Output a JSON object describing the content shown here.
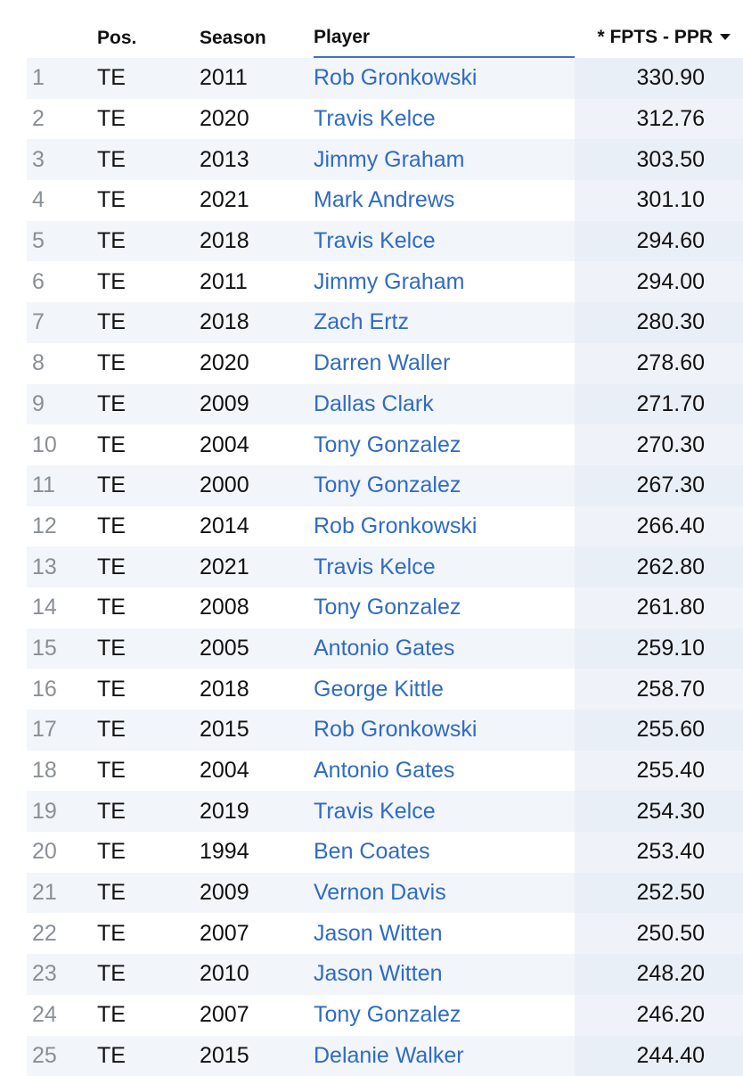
{
  "headers": {
    "rank": "",
    "pos": "Pos.",
    "season": "Season",
    "player": "Player",
    "fpts": "* FPTS - PPR",
    "sort_icon": "caret-down-icon"
  },
  "rows": [
    {
      "rank": "1",
      "pos": "TE",
      "season": "2011",
      "player": "Rob Gronkowski",
      "fpts": "330.90"
    },
    {
      "rank": "2",
      "pos": "TE",
      "season": "2020",
      "player": "Travis Kelce",
      "fpts": "312.76"
    },
    {
      "rank": "3",
      "pos": "TE",
      "season": "2013",
      "player": "Jimmy Graham",
      "fpts": "303.50"
    },
    {
      "rank": "4",
      "pos": "TE",
      "season": "2021",
      "player": "Mark Andrews",
      "fpts": "301.10"
    },
    {
      "rank": "5",
      "pos": "TE",
      "season": "2018",
      "player": "Travis Kelce",
      "fpts": "294.60"
    },
    {
      "rank": "6",
      "pos": "TE",
      "season": "2011",
      "player": "Jimmy Graham",
      "fpts": "294.00"
    },
    {
      "rank": "7",
      "pos": "TE",
      "season": "2018",
      "player": "Zach Ertz",
      "fpts": "280.30"
    },
    {
      "rank": "8",
      "pos": "TE",
      "season": "2020",
      "player": "Darren Waller",
      "fpts": "278.60"
    },
    {
      "rank": "9",
      "pos": "TE",
      "season": "2009",
      "player": "Dallas Clark",
      "fpts": "271.70"
    },
    {
      "rank": "10",
      "pos": "TE",
      "season": "2004",
      "player": "Tony Gonzalez",
      "fpts": "270.30"
    },
    {
      "rank": "11",
      "pos": "TE",
      "season": "2000",
      "player": "Tony Gonzalez",
      "fpts": "267.30"
    },
    {
      "rank": "12",
      "pos": "TE",
      "season": "2014",
      "player": "Rob Gronkowski",
      "fpts": "266.40"
    },
    {
      "rank": "13",
      "pos": "TE",
      "season": "2021",
      "player": "Travis Kelce",
      "fpts": "262.80"
    },
    {
      "rank": "14",
      "pos": "TE",
      "season": "2008",
      "player": "Tony Gonzalez",
      "fpts": "261.80"
    },
    {
      "rank": "15",
      "pos": "TE",
      "season": "2005",
      "player": "Antonio Gates",
      "fpts": "259.10"
    },
    {
      "rank": "16",
      "pos": "TE",
      "season": "2018",
      "player": "George Kittle",
      "fpts": "258.70"
    },
    {
      "rank": "17",
      "pos": "TE",
      "season": "2015",
      "player": "Rob Gronkowski",
      "fpts": "255.60"
    },
    {
      "rank": "18",
      "pos": "TE",
      "season": "2004",
      "player": "Antonio Gates",
      "fpts": "255.40"
    },
    {
      "rank": "19",
      "pos": "TE",
      "season": "2019",
      "player": "Travis Kelce",
      "fpts": "254.30"
    },
    {
      "rank": "20",
      "pos": "TE",
      "season": "1994",
      "player": "Ben Coates",
      "fpts": "253.40"
    },
    {
      "rank": "21",
      "pos": "TE",
      "season": "2009",
      "player": "Vernon Davis",
      "fpts": "252.50"
    },
    {
      "rank": "22",
      "pos": "TE",
      "season": "2007",
      "player": "Jason Witten",
      "fpts": "250.50"
    },
    {
      "rank": "23",
      "pos": "TE",
      "season": "2010",
      "player": "Jason Witten",
      "fpts": "248.20"
    },
    {
      "rank": "24",
      "pos": "TE",
      "season": "2007",
      "player": "Tony Gonzalez",
      "fpts": "246.20"
    },
    {
      "rank": "25",
      "pos": "TE",
      "season": "2015",
      "player": "Delanie Walker",
      "fpts": "244.40"
    }
  ],
  "colors": {
    "link": "#2f6bc4",
    "row_stripe": "#f2f5f9",
    "sorted_column": "#e1e9f4",
    "header_underline": "#3f6fc6"
  }
}
